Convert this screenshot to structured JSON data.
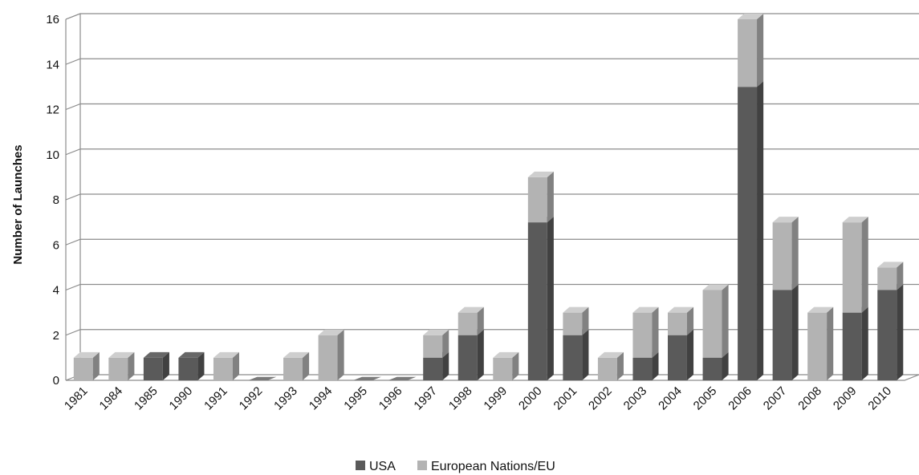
{
  "chart_data": {
    "type": "bar",
    "stacked": true,
    "three_d": true,
    "title": "",
    "xlabel": "",
    "ylabel": "Number of Launches",
    "ylim": [
      0,
      16
    ],
    "yticks": [
      0,
      2,
      4,
      6,
      8,
      10,
      12,
      14,
      16
    ],
    "grid": true,
    "legend_position": "bottom",
    "categories": [
      "1981",
      "1984",
      "1985",
      "1990",
      "1991",
      "1992",
      "1993",
      "1994",
      "1995",
      "1996",
      "1997",
      "1998",
      "1999",
      "2000",
      "2001",
      "2002",
      "2003",
      "2004",
      "2005",
      "2006",
      "2007",
      "2008",
      "2009",
      "2010"
    ],
    "series": [
      {
        "name": "USA",
        "color": "#5a5a5a",
        "values": [
          0,
          0,
          1,
          1,
          0,
          0,
          0,
          0,
          0,
          0,
          1,
          2,
          0,
          7,
          2,
          0,
          1,
          2,
          1,
          13,
          4,
          0,
          3,
          4
        ]
      },
      {
        "name": "European Nations/EU",
        "color": "#b3b3b3",
        "values": [
          1,
          1,
          0,
          0,
          1,
          0,
          1,
          2,
          0,
          0,
          1,
          1,
          1,
          2,
          1,
          1,
          2,
          1,
          3,
          3,
          3,
          3,
          4,
          1
        ]
      }
    ]
  }
}
